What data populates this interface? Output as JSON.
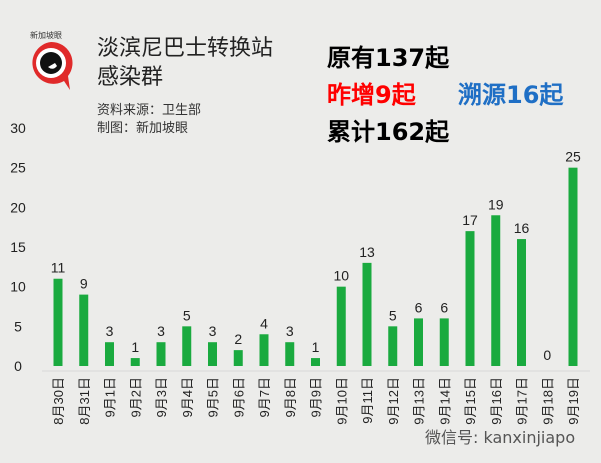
{
  "logo": {
    "text": "新加坡眼"
  },
  "header": {
    "title_line1": "淡滨尼巴士转换站",
    "title_line2": "感染群",
    "source": "资料来源：卫生部",
    "credit": "制图：新加坡眼"
  },
  "stats": {
    "original": "原有137起",
    "new": "昨增9起",
    "traced": "溯源16起",
    "total": "累计162起",
    "colors": {
      "original": "#000000",
      "new": "#ff0000",
      "traced": "#1f6fc5",
      "total": "#000000"
    }
  },
  "watermark": "微信号: kanxinjiapo",
  "chart_data": {
    "type": "bar",
    "categories": [
      "8月30日",
      "8月31日",
      "9月1日",
      "9月2日",
      "9月3日",
      "9月4日",
      "9月5日",
      "9月6日",
      "9月7日",
      "9月8日",
      "9月9日",
      "9月10日",
      "9月11日",
      "9月12日",
      "9月13日",
      "9月14日",
      "9月15日",
      "9月16日",
      "9月17日",
      "9月18日",
      "9月19日"
    ],
    "values": [
      11,
      9,
      3,
      1,
      3,
      5,
      3,
      2,
      4,
      3,
      1,
      10,
      13,
      5,
      6,
      6,
      17,
      19,
      16,
      0,
      25
    ],
    "yticks": [
      0,
      5,
      10,
      15,
      20,
      25,
      30
    ],
    "ylim": [
      0,
      30
    ],
    "grid": false,
    "bar_color": "#1aaa3f",
    "data_labels": true
  }
}
